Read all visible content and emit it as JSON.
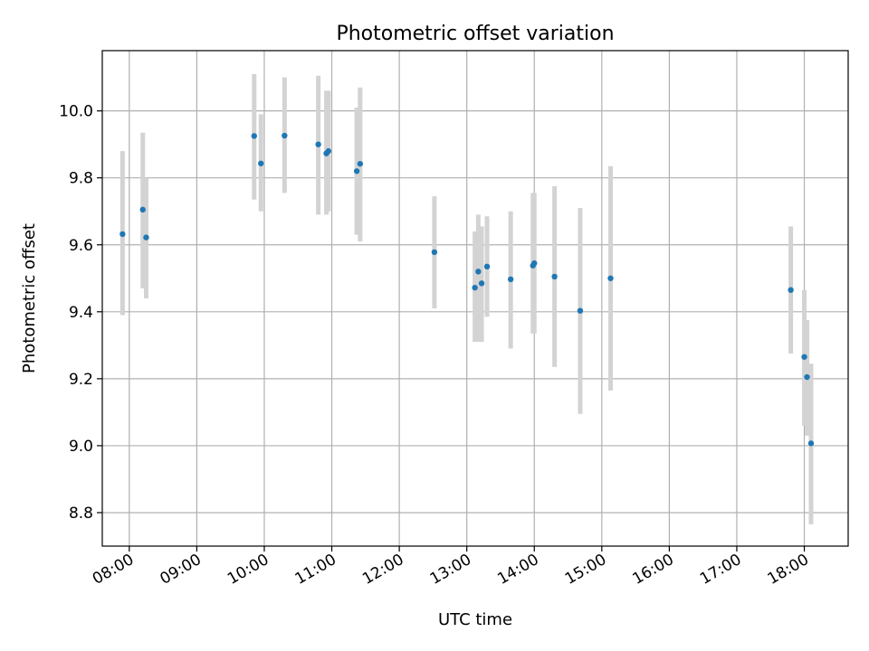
{
  "chart_data": {
    "type": "scatter",
    "title": "Photometric offset variation",
    "xlabel": "UTC time",
    "ylabel": "Photometric offset",
    "x_unit": "hours UTC",
    "xlim": [
      7.6,
      18.65
    ],
    "ylim": [
      8.7,
      10.18
    ],
    "x_ticks": [
      {
        "value": 8,
        "label": "08:00"
      },
      {
        "value": 9,
        "label": "09:00"
      },
      {
        "value": 10,
        "label": "10:00"
      },
      {
        "value": 11,
        "label": "11:00"
      },
      {
        "value": 12,
        "label": "12:00"
      },
      {
        "value": 13,
        "label": "13:00"
      },
      {
        "value": 14,
        "label": "14:00"
      },
      {
        "value": 15,
        "label": "15:00"
      },
      {
        "value": 16,
        "label": "16:00"
      },
      {
        "value": 17,
        "label": "17:00"
      },
      {
        "value": 18,
        "label": "18:00"
      }
    ],
    "y_ticks": [
      {
        "value": 8.8,
        "label": "8.8"
      },
      {
        "value": 9.0,
        "label": "9.0"
      },
      {
        "value": 9.2,
        "label": "9.2"
      },
      {
        "value": 9.4,
        "label": "9.4"
      },
      {
        "value": 9.6,
        "label": "9.6"
      },
      {
        "value": 9.8,
        "label": "9.8"
      },
      {
        "value": 10.0,
        "label": "10.0"
      }
    ],
    "grid": true,
    "point_color": "#1f77b4",
    "errorbar_color": "#d3d3d3",
    "points": [
      {
        "x": 7.9,
        "y": 9.632,
        "ylo": 9.39,
        "yhi": 9.88
      },
      {
        "x": 8.2,
        "y": 9.705,
        "ylo": 9.47,
        "yhi": 9.935
      },
      {
        "x": 8.25,
        "y": 9.622,
        "ylo": 9.44,
        "yhi": 9.8
      },
      {
        "x": 9.85,
        "y": 9.925,
        "ylo": 9.735,
        "yhi": 10.11
      },
      {
        "x": 9.95,
        "y": 9.843,
        "ylo": 9.7,
        "yhi": 9.99
      },
      {
        "x": 10.3,
        "y": 9.926,
        "ylo": 9.755,
        "yhi": 10.1
      },
      {
        "x": 10.8,
        "y": 9.9,
        "ylo": 9.69,
        "yhi": 10.105
      },
      {
        "x": 10.92,
        "y": 9.873,
        "ylo": 9.69,
        "yhi": 10.06
      },
      {
        "x": 10.95,
        "y": 9.88,
        "ylo": 9.7,
        "yhi": 10.06
      },
      {
        "x": 11.37,
        "y": 9.82,
        "ylo": 9.63,
        "yhi": 10.01
      },
      {
        "x": 11.42,
        "y": 9.842,
        "ylo": 9.61,
        "yhi": 10.07
      },
      {
        "x": 12.52,
        "y": 9.578,
        "ylo": 9.41,
        "yhi": 9.745
      },
      {
        "x": 13.12,
        "y": 9.472,
        "ylo": 9.31,
        "yhi": 9.64
      },
      {
        "x": 13.17,
        "y": 9.52,
        "ylo": 9.31,
        "yhi": 9.69
      },
      {
        "x": 13.22,
        "y": 9.485,
        "ylo": 9.31,
        "yhi": 9.655
      },
      {
        "x": 13.3,
        "y": 9.535,
        "ylo": 9.385,
        "yhi": 9.685
      },
      {
        "x": 13.65,
        "y": 9.497,
        "ylo": 9.29,
        "yhi": 9.7
      },
      {
        "x": 13.98,
        "y": 9.538,
        "ylo": 9.335,
        "yhi": 9.755
      },
      {
        "x": 14.0,
        "y": 9.545,
        "ylo": 9.335,
        "yhi": 9.755
      },
      {
        "x": 14.3,
        "y": 9.505,
        "ylo": 9.235,
        "yhi": 9.775
      },
      {
        "x": 14.68,
        "y": 9.403,
        "ylo": 9.095,
        "yhi": 9.71
      },
      {
        "x": 15.13,
        "y": 9.5,
        "ylo": 9.165,
        "yhi": 9.835
      },
      {
        "x": 17.8,
        "y": 9.465,
        "ylo": 9.275,
        "yhi": 9.655
      },
      {
        "x": 18.0,
        "y": 9.265,
        "ylo": 9.06,
        "yhi": 9.465
      },
      {
        "x": 18.04,
        "y": 9.205,
        "ylo": 9.03,
        "yhi": 9.375
      },
      {
        "x": 18.1,
        "y": 9.007,
        "ylo": 8.765,
        "yhi": 9.245
      }
    ]
  }
}
